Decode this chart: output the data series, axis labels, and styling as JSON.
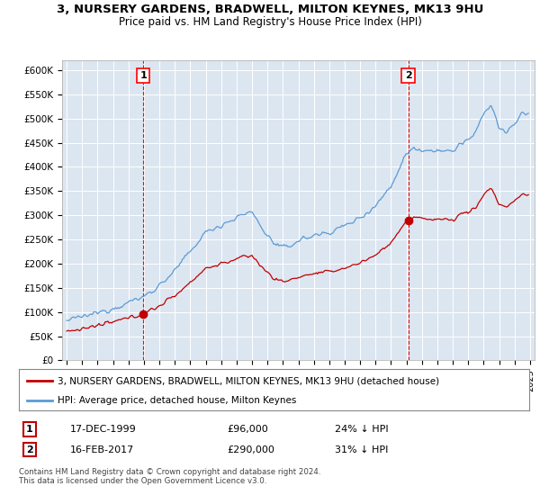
{
  "title": "3, NURSERY GARDENS, BRADWELL, MILTON KEYNES, MK13 9HU",
  "subtitle": "Price paid vs. HM Land Registry's House Price Index (HPI)",
  "ylim": [
    0,
    620000
  ],
  "yticks": [
    0,
    50000,
    100000,
    150000,
    200000,
    250000,
    300000,
    350000,
    400000,
    450000,
    500000,
    550000,
    600000
  ],
  "ytick_labels": [
    "£0",
    "£50K",
    "£100K",
    "£150K",
    "£200K",
    "£250K",
    "£300K",
    "£350K",
    "£400K",
    "£450K",
    "£500K",
    "£550K",
    "£600K"
  ],
  "sale1": {
    "date_label": "17-DEC-1999",
    "price": 96000,
    "price_str": "£96,000",
    "hpi_pct": "24% ↓ HPI",
    "marker_num": "1",
    "x": 1999.96
  },
  "sale2": {
    "date_label": "16-FEB-2017",
    "price": 290000,
    "price_str": "£290,000",
    "hpi_pct": "31% ↓ HPI",
    "marker_num": "2",
    "x": 2017.12
  },
  "legend_house": "3, NURSERY GARDENS, BRADWELL, MILTON KEYNES, MK13 9HU (detached house)",
  "legend_hpi": "HPI: Average price, detached house, Milton Keynes",
  "footer": "Contains HM Land Registry data © Crown copyright and database right 2024.\nThis data is licensed under the Open Government Licence v3.0.",
  "hpi_color": "#5b9bd5",
  "sale_color": "#c00000",
  "bg_color": "#ffffff",
  "plot_bg_color": "#dce6f1",
  "grid_color": "#ffffff",
  "vline_color": "#ff0000",
  "xlim_left": 1994.7,
  "xlim_right": 2025.3
}
